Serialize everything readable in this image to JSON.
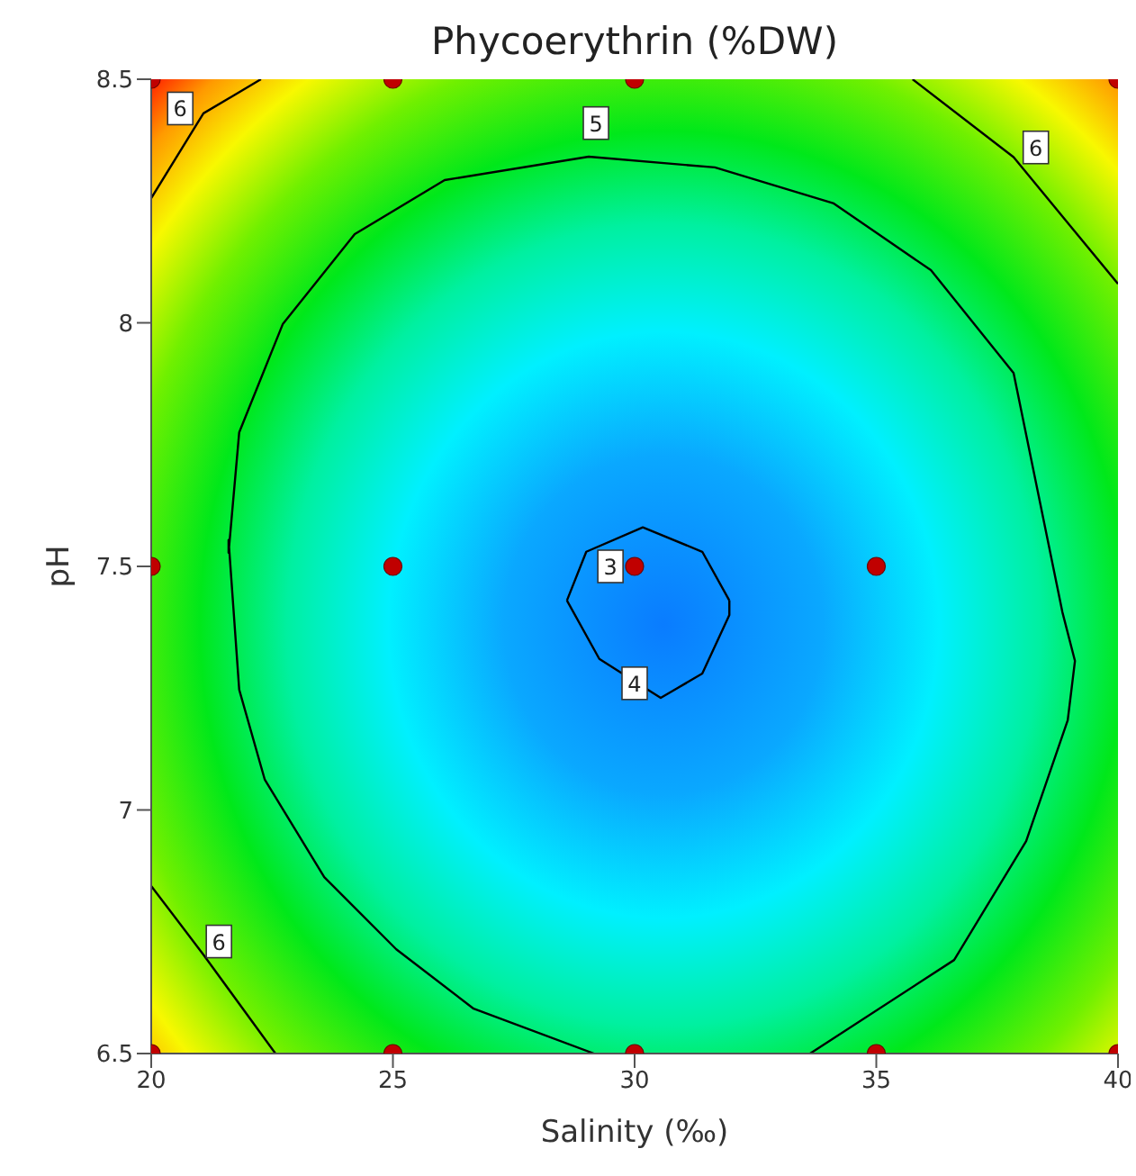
{
  "chart_data": {
    "type": "scatter",
    "title": "Phycoerythrin  (%DW)",
    "xlabel": "Salinity (‰)",
    "ylabel": "pH",
    "xlim": [
      20,
      40
    ],
    "ylim": [
      6.5,
      8.5
    ],
    "xticks": [
      20,
      25,
      30,
      35,
      40
    ],
    "yticks": [
      6.5,
      7,
      7.5,
      8,
      8.5
    ],
    "series": [
      {
        "type": "line",
        "color": "#000000",
        "marker": "none",
        "line_style": "solid",
        "x": [
          29.16,
          26.67,
          25.07,
          23.58,
          22.35,
          21.82,
          21.6,
          21.6,
          21.82,
          22.72,
          24.21,
          26.07,
          29.05,
          31.66,
          34.12,
          36.13,
          37.84,
          38.85,
          39.11,
          38.96,
          38.1,
          36.61,
          33.63
        ],
        "values": [
          6.5,
          6.592,
          6.714,
          6.862,
          7.062,
          7.247,
          7.554,
          7.528,
          7.775,
          7.997,
          8.182,
          8.293,
          8.341,
          8.319,
          8.245,
          8.108,
          7.897,
          7.406,
          7.306,
          7.184,
          6.936,
          6.692,
          6.5
        ]
      },
      {
        "type": "line",
        "color": "#000000",
        "marker": "none",
        "line_style": "solid",
        "x": [
          28.6,
          29.0,
          30.17,
          31.4,
          31.96
        ],
        "values": [
          7.43,
          7.53,
          7.58,
          7.53,
          7.43
        ]
      },
      {
        "type": "line",
        "color": "#000000",
        "marker": "none",
        "line_style": "solid",
        "x": [
          28.6,
          29.27,
          30.54,
          31.4,
          31.96,
          31.96
        ],
        "values": [
          7.43,
          7.31,
          7.23,
          7.28,
          7.4,
          7.43
        ]
      },
      {
        "type": "line",
        "color": "#000000",
        "marker": "none",
        "line_style": "solid",
        "x": [
          20,
          21.08,
          22.27
        ],
        "values": [
          8.256,
          8.43,
          8.5
        ]
      },
      {
        "type": "line",
        "color": "#000000",
        "marker": "none",
        "line_style": "solid",
        "x": [
          35.75,
          37.84,
          40
        ],
        "values": [
          8.5,
          8.34,
          8.08
        ]
      },
      {
        "type": "line",
        "color": "#000000",
        "marker": "none",
        "line_style": "solid",
        "x": [
          20,
          21.08,
          22.57
        ],
        "values": [
          6.844,
          6.703,
          6.5
        ]
      },
      {
        "type": "scatter",
        "color": "#c00000",
        "marker": "circle",
        "x": [
          20,
          25,
          30,
          40,
          20,
          25,
          30,
          35,
          20,
          25,
          30,
          35,
          40
        ],
        "values": [
          8.5,
          8.5,
          8.5,
          8.5,
          7.5,
          7.5,
          7.5,
          7.5,
          6.5,
          6.5,
          6.5,
          6.5,
          6.5
        ]
      }
    ],
    "annotations": [
      {
        "text": "6",
        "x": 20.6,
        "y": 8.44
      },
      {
        "text": "5",
        "x": 29.2,
        "y": 8.41
      },
      {
        "text": "6",
        "x": 38.3,
        "y": 8.36
      },
      {
        "text": "3",
        "x": 29.5,
        "y": 7.5
      },
      {
        "text": "4",
        "x": 30.0,
        "y": 7.26
      },
      {
        "text": "6",
        "x": 21.4,
        "y": 6.73
      }
    ]
  }
}
